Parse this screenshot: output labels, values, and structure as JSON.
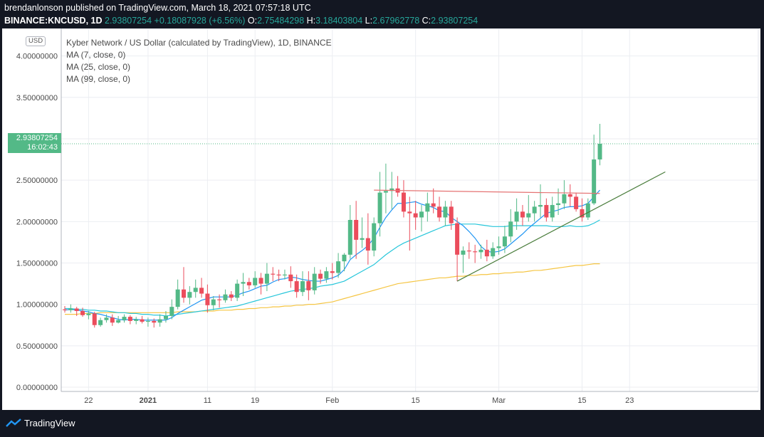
{
  "header": {
    "line1": "brendanlonson published on TradingView.com, March 18, 2021 07:57:18 UTC",
    "symbol": "BINANCE:KNCUSD, 1D",
    "last": "2.93807254",
    "change": "+0.18087928 (+6.56%)",
    "o_label": "O:",
    "o_value": "2.75484298",
    "h_label": "H:",
    "h_value": "3.18403804",
    "l_label": "L:",
    "l_value": "2.67962778",
    "c_label": "C:",
    "c_value": "2.93807254"
  },
  "legend": {
    "title": "Kyber Network / US Dollar (calculated by TradingView), 1D, BINANCE",
    "ma1": "MA (7, close, 0)",
    "ma2": "MA (25, close, 0)",
    "ma3": "MA (99, close, 0)"
  },
  "price_axis": {
    "currency": "USD",
    "current_price": "2.93807254",
    "countdown": "16:02:43"
  },
  "footer": {
    "brand": "TradingView"
  },
  "colors": {
    "up": "#53b987",
    "down": "#eb4d5c",
    "ma7": "#2196f3",
    "ma25": "#26c6da",
    "ma99": "#f5c542",
    "resistance": "#e57373",
    "support": "#4a7d3c"
  },
  "chart_data": {
    "type": "candlestick",
    "ylim": [
      0,
      4.1
    ],
    "y_ticks": [
      "0.00000000",
      "0.50000000",
      "1.00000000",
      "1.50000000",
      "2.00000000",
      "2.50000000",
      "3.00000000",
      "3.50000000",
      "4.00000000"
    ],
    "x_tick_labels": [
      {
        "label": "22",
        "index": 4
      },
      {
        "label": "2021",
        "index": 14
      },
      {
        "label": "11",
        "index": 24
      },
      {
        "label": "19",
        "index": 32
      },
      {
        "label": "Feb",
        "index": 45
      },
      {
        "label": "15",
        "index": 59
      },
      {
        "label": "Mar",
        "index": 73
      },
      {
        "label": "15",
        "index": 87
      },
      {
        "label": "23",
        "index": 95
      }
    ],
    "candles": [
      {
        "o": 0.94,
        "h": 0.98,
        "l": 0.9,
        "c": 0.93
      },
      {
        "o": 0.93,
        "h": 1.0,
        "l": 0.9,
        "c": 0.95
      },
      {
        "o": 0.95,
        "h": 0.97,
        "l": 0.86,
        "c": 0.92
      },
      {
        "o": 0.92,
        "h": 0.96,
        "l": 0.85,
        "c": 0.87
      },
      {
        "o": 0.87,
        "h": 0.92,
        "l": 0.82,
        "c": 0.89
      },
      {
        "o": 0.89,
        "h": 0.91,
        "l": 0.72,
        "c": 0.75
      },
      {
        "o": 0.75,
        "h": 0.84,
        "l": 0.73,
        "c": 0.81
      },
      {
        "o": 0.81,
        "h": 0.88,
        "l": 0.78,
        "c": 0.84
      },
      {
        "o": 0.84,
        "h": 0.88,
        "l": 0.74,
        "c": 0.78
      },
      {
        "o": 0.78,
        "h": 0.86,
        "l": 0.77,
        "c": 0.81
      },
      {
        "o": 0.81,
        "h": 0.88,
        "l": 0.78,
        "c": 0.85
      },
      {
        "o": 0.85,
        "h": 0.87,
        "l": 0.76,
        "c": 0.8
      },
      {
        "o": 0.8,
        "h": 0.85,
        "l": 0.76,
        "c": 0.82
      },
      {
        "o": 0.82,
        "h": 0.86,
        "l": 0.77,
        "c": 0.79
      },
      {
        "o": 0.79,
        "h": 0.84,
        "l": 0.73,
        "c": 0.8
      },
      {
        "o": 0.8,
        "h": 0.83,
        "l": 0.72,
        "c": 0.78
      },
      {
        "o": 0.78,
        "h": 0.88,
        "l": 0.73,
        "c": 0.82
      },
      {
        "o": 0.82,
        "h": 0.92,
        "l": 0.78,
        "c": 0.86
      },
      {
        "o": 0.86,
        "h": 1.06,
        "l": 0.82,
        "c": 0.97
      },
      {
        "o": 0.97,
        "h": 1.3,
        "l": 0.94,
        "c": 1.18
      },
      {
        "o": 1.18,
        "h": 1.45,
        "l": 1.02,
        "c": 1.08
      },
      {
        "o": 1.08,
        "h": 1.22,
        "l": 1.0,
        "c": 1.15
      },
      {
        "o": 1.15,
        "h": 1.3,
        "l": 1.08,
        "c": 1.2
      },
      {
        "o": 1.2,
        "h": 1.32,
        "l": 1.08,
        "c": 1.13
      },
      {
        "o": 1.13,
        "h": 1.24,
        "l": 0.9,
        "c": 0.99
      },
      {
        "o": 0.99,
        "h": 1.1,
        "l": 0.93,
        "c": 1.06
      },
      {
        "o": 1.06,
        "h": 1.12,
        "l": 0.96,
        "c": 1.05
      },
      {
        "o": 1.05,
        "h": 1.18,
        "l": 1.02,
        "c": 1.12
      },
      {
        "o": 1.12,
        "h": 1.16,
        "l": 1.04,
        "c": 1.08
      },
      {
        "o": 1.08,
        "h": 1.3,
        "l": 1.04,
        "c": 1.25
      },
      {
        "o": 1.25,
        "h": 1.38,
        "l": 1.1,
        "c": 1.27
      },
      {
        "o": 1.27,
        "h": 1.32,
        "l": 1.18,
        "c": 1.23
      },
      {
        "o": 1.23,
        "h": 1.4,
        "l": 1.2,
        "c": 1.32
      },
      {
        "o": 1.32,
        "h": 1.38,
        "l": 1.12,
        "c": 1.25
      },
      {
        "o": 1.25,
        "h": 1.5,
        "l": 1.16,
        "c": 1.37
      },
      {
        "o": 1.37,
        "h": 1.45,
        "l": 1.28,
        "c": 1.36
      },
      {
        "o": 1.36,
        "h": 1.42,
        "l": 1.28,
        "c": 1.35
      },
      {
        "o": 1.35,
        "h": 1.42,
        "l": 1.3,
        "c": 1.36
      },
      {
        "o": 1.36,
        "h": 1.46,
        "l": 1.2,
        "c": 1.28
      },
      {
        "o": 1.28,
        "h": 1.36,
        "l": 1.08,
        "c": 1.15
      },
      {
        "o": 1.15,
        "h": 1.4,
        "l": 1.1,
        "c": 1.28
      },
      {
        "o": 1.28,
        "h": 1.4,
        "l": 1.05,
        "c": 1.17
      },
      {
        "o": 1.17,
        "h": 1.45,
        "l": 1.12,
        "c": 1.37
      },
      {
        "o": 1.37,
        "h": 1.42,
        "l": 1.25,
        "c": 1.31
      },
      {
        "o": 1.31,
        "h": 1.45,
        "l": 1.26,
        "c": 1.4
      },
      {
        "o": 1.4,
        "h": 1.5,
        "l": 1.3,
        "c": 1.38
      },
      {
        "o": 1.38,
        "h": 1.62,
        "l": 1.32,
        "c": 1.52
      },
      {
        "o": 1.52,
        "h": 1.62,
        "l": 1.4,
        "c": 1.6
      },
      {
        "o": 1.6,
        "h": 2.2,
        "l": 1.55,
        "c": 2.02
      },
      {
        "o": 2.02,
        "h": 2.25,
        "l": 1.55,
        "c": 1.78
      },
      {
        "o": 1.78,
        "h": 2.05,
        "l": 1.68,
        "c": 1.8
      },
      {
        "o": 1.8,
        "h": 2.1,
        "l": 1.48,
        "c": 1.65
      },
      {
        "o": 1.65,
        "h": 2.05,
        "l": 1.58,
        "c": 1.98
      },
      {
        "o": 1.98,
        "h": 2.6,
        "l": 1.82,
        "c": 2.35
      },
      {
        "o": 2.35,
        "h": 2.7,
        "l": 2.1,
        "c": 2.37
      },
      {
        "o": 2.37,
        "h": 2.6,
        "l": 2.15,
        "c": 2.4
      },
      {
        "o": 2.4,
        "h": 2.55,
        "l": 2.3,
        "c": 2.35
      },
      {
        "o": 2.35,
        "h": 2.5,
        "l": 2.05,
        "c": 2.12
      },
      {
        "o": 2.12,
        "h": 2.3,
        "l": 1.65,
        "c": 2.1
      },
      {
        "o": 2.1,
        "h": 2.25,
        "l": 1.9,
        "c": 2.05
      },
      {
        "o": 2.05,
        "h": 2.2,
        "l": 1.88,
        "c": 2.12
      },
      {
        "o": 2.12,
        "h": 2.35,
        "l": 2.0,
        "c": 2.22
      },
      {
        "o": 2.22,
        "h": 2.4,
        "l": 2.1,
        "c": 2.18
      },
      {
        "o": 2.18,
        "h": 2.3,
        "l": 2.0,
        "c": 2.05
      },
      {
        "o": 2.05,
        "h": 2.25,
        "l": 1.95,
        "c": 2.18
      },
      {
        "o": 2.18,
        "h": 2.25,
        "l": 1.9,
        "c": 1.98
      },
      {
        "o": 1.98,
        "h": 2.05,
        "l": 1.28,
        "c": 1.6
      },
      {
        "o": 1.6,
        "h": 1.7,
        "l": 1.38,
        "c": 1.65
      },
      {
        "o": 1.65,
        "h": 1.75,
        "l": 1.55,
        "c": 1.64
      },
      {
        "o": 1.64,
        "h": 1.72,
        "l": 1.5,
        "c": 1.63
      },
      {
        "o": 1.63,
        "h": 1.72,
        "l": 1.55,
        "c": 1.66
      },
      {
        "o": 1.66,
        "h": 1.78,
        "l": 1.52,
        "c": 1.58
      },
      {
        "o": 1.58,
        "h": 1.75,
        "l": 1.55,
        "c": 1.68
      },
      {
        "o": 1.68,
        "h": 1.82,
        "l": 1.6,
        "c": 1.7
      },
      {
        "o": 1.7,
        "h": 1.95,
        "l": 1.62,
        "c": 1.82
      },
      {
        "o": 1.82,
        "h": 2.15,
        "l": 1.75,
        "c": 2.0
      },
      {
        "o": 2.0,
        "h": 2.28,
        "l": 1.9,
        "c": 2.12
      },
      {
        "o": 2.12,
        "h": 2.2,
        "l": 1.95,
        "c": 2.05
      },
      {
        "o": 2.05,
        "h": 2.32,
        "l": 2.0,
        "c": 2.1
      },
      {
        "o": 2.1,
        "h": 2.25,
        "l": 2.0,
        "c": 2.18
      },
      {
        "o": 2.18,
        "h": 2.45,
        "l": 2.05,
        "c": 2.2
      },
      {
        "o": 2.2,
        "h": 2.28,
        "l": 2.0,
        "c": 2.05
      },
      {
        "o": 2.05,
        "h": 2.3,
        "l": 2.0,
        "c": 2.2
      },
      {
        "o": 2.2,
        "h": 2.4,
        "l": 2.08,
        "c": 2.22
      },
      {
        "o": 2.22,
        "h": 2.5,
        "l": 2.15,
        "c": 2.33
      },
      {
        "o": 2.33,
        "h": 2.45,
        "l": 2.18,
        "c": 2.3
      },
      {
        "o": 2.3,
        "h": 2.35,
        "l": 2.12,
        "c": 2.15
      },
      {
        "o": 2.15,
        "h": 2.28,
        "l": 2.0,
        "c": 2.05
      },
      {
        "o": 2.05,
        "h": 2.28,
        "l": 2.02,
        "c": 2.22
      },
      {
        "o": 2.22,
        "h": 3.05,
        "l": 2.2,
        "c": 2.75
      },
      {
        "o": 2.75,
        "h": 3.18,
        "l": 2.68,
        "c": 2.94
      }
    ],
    "ma7": [
      0.93,
      0.94,
      0.93,
      0.92,
      0.91,
      0.89,
      0.88,
      0.86,
      0.84,
      0.82,
      0.81,
      0.82,
      0.82,
      0.81,
      0.81,
      0.81,
      0.81,
      0.81,
      0.84,
      0.89,
      0.93,
      0.97,
      1.01,
      1.05,
      1.07,
      1.09,
      1.09,
      1.09,
      1.09,
      1.11,
      1.14,
      1.16,
      1.19,
      1.22,
      1.23,
      1.27,
      1.3,
      1.31,
      1.33,
      1.32,
      1.3,
      1.29,
      1.28,
      1.28,
      1.3,
      1.32,
      1.35,
      1.42,
      1.54,
      1.6,
      1.65,
      1.71,
      1.8,
      1.93,
      2.05,
      2.14,
      2.22,
      2.22,
      2.23,
      2.24,
      2.21,
      2.19,
      2.17,
      2.13,
      2.12,
      2.05,
      2.0,
      1.95,
      1.88,
      1.8,
      1.7,
      1.64,
      1.63,
      1.64,
      1.67,
      1.73,
      1.79,
      1.85,
      1.92,
      1.98,
      2.04,
      2.1,
      2.12,
      2.14,
      2.17,
      2.18,
      2.18,
      2.19,
      2.22,
      2.3,
      2.38
    ],
    "ma25": [
      0.95,
      0.95,
      0.94,
      0.94,
      0.93,
      0.93,
      0.92,
      0.92,
      0.91,
      0.9,
      0.9,
      0.89,
      0.89,
      0.88,
      0.88,
      0.87,
      0.87,
      0.86,
      0.87,
      0.88,
      0.89,
      0.9,
      0.91,
      0.92,
      0.93,
      0.94,
      0.95,
      0.96,
      0.97,
      0.98,
      1.0,
      1.02,
      1.04,
      1.06,
      1.08,
      1.1,
      1.12,
      1.14,
      1.16,
      1.17,
      1.18,
      1.19,
      1.2,
      1.22,
      1.23,
      1.24,
      1.26,
      1.28,
      1.32,
      1.36,
      1.4,
      1.44,
      1.48,
      1.54,
      1.6,
      1.65,
      1.7,
      1.74,
      1.77,
      1.8,
      1.83,
      1.86,
      1.89,
      1.92,
      1.95,
      1.96,
      1.97,
      1.97,
      1.97,
      1.97,
      1.96,
      1.95,
      1.94,
      1.94,
      1.94,
      1.95,
      1.95,
      1.95,
      1.95,
      1.95,
      1.95,
      1.95,
      1.94,
      1.94,
      1.94,
      1.95,
      1.94,
      1.94,
      1.95,
      1.98,
      2.02
    ],
    "ma99": [
      0.88,
      0.88,
      0.88,
      0.89,
      0.89,
      0.89,
      0.9,
      0.9,
      0.9,
      0.9,
      0.9,
      0.9,
      0.9,
      0.9,
      0.9,
      0.9,
      0.9,
      0.9,
      0.9,
      0.91,
      0.91,
      0.91,
      0.91,
      0.92,
      0.92,
      0.92,
      0.93,
      0.93,
      0.93,
      0.94,
      0.94,
      0.95,
      0.95,
      0.96,
      0.96,
      0.97,
      0.97,
      0.98,
      0.98,
      0.99,
      0.99,
      1.0,
      1.0,
      1.01,
      1.02,
      1.03,
      1.05,
      1.07,
      1.09,
      1.11,
      1.13,
      1.15,
      1.17,
      1.19,
      1.21,
      1.23,
      1.25,
      1.26,
      1.27,
      1.28,
      1.29,
      1.3,
      1.31,
      1.32,
      1.32,
      1.33,
      1.34,
      1.34,
      1.35,
      1.35,
      1.36,
      1.36,
      1.37,
      1.37,
      1.38,
      1.38,
      1.39,
      1.39,
      1.4,
      1.41,
      1.41,
      1.42,
      1.43,
      1.44,
      1.45,
      1.46,
      1.47,
      1.47,
      1.48,
      1.49,
      1.49
    ],
    "drawings": {
      "resistance": {
        "from": {
          "index": 52,
          "price": 2.38
        },
        "to": {
          "index": 90,
          "price": 2.34
        }
      },
      "support": {
        "from": {
          "index": 66,
          "price": 1.28
        },
        "to": {
          "index": 101,
          "price": 2.6
        }
      }
    }
  }
}
